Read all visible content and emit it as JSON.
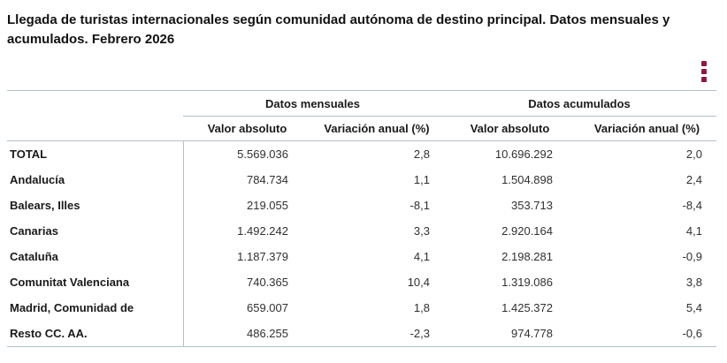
{
  "title": "Llegada de turistas internacionales según comunidad autónoma de destino principal. Datos mensuales y acumulados. Febrero 2026",
  "menu": {
    "icon": "kebab-menu-icon"
  },
  "colors": {
    "accent": "#8d1b3d",
    "rule_line": "#b2c0c9",
    "text": "#1a1a1a"
  },
  "table": {
    "group_headers": [
      "Datos mensuales",
      "Datos acumulados"
    ],
    "column_headers": [
      "Valor absoluto",
      "Variación anual (%)",
      "Valor absoluto",
      "Variación anual (%)"
    ],
    "rows": [
      {
        "label": "TOTAL",
        "m_abs": "5.569.036",
        "m_var": "2,8",
        "a_abs": "10.696.292",
        "a_var": "2,0"
      },
      {
        "label": "Andalucía",
        "m_abs": "784.734",
        "m_var": "1,1",
        "a_abs": "1.504.898",
        "a_var": "2,4"
      },
      {
        "label": "Balears, Illes",
        "m_abs": "219.055",
        "m_var": "-8,1",
        "a_abs": "353.713",
        "a_var": "-8,4"
      },
      {
        "label": "Canarias",
        "m_abs": "1.492.242",
        "m_var": "3,3",
        "a_abs": "2.920.164",
        "a_var": "4,1"
      },
      {
        "label": "Cataluña",
        "m_abs": "1.187.379",
        "m_var": "4,1",
        "a_abs": "2.198.281",
        "a_var": "-0,9"
      },
      {
        "label": "Comunitat Valenciana",
        "m_abs": "740.365",
        "m_var": "10,4",
        "a_abs": "1.319.086",
        "a_var": "3,8"
      },
      {
        "label": "Madrid, Comunidad de",
        "m_abs": "659.007",
        "m_var": "1,8",
        "a_abs": "1.425.372",
        "a_var": "5,4"
      },
      {
        "label": "Resto CC. AA.",
        "m_abs": "486.255",
        "m_var": "-2,3",
        "a_abs": "974.778",
        "a_var": "-0,6"
      }
    ]
  }
}
